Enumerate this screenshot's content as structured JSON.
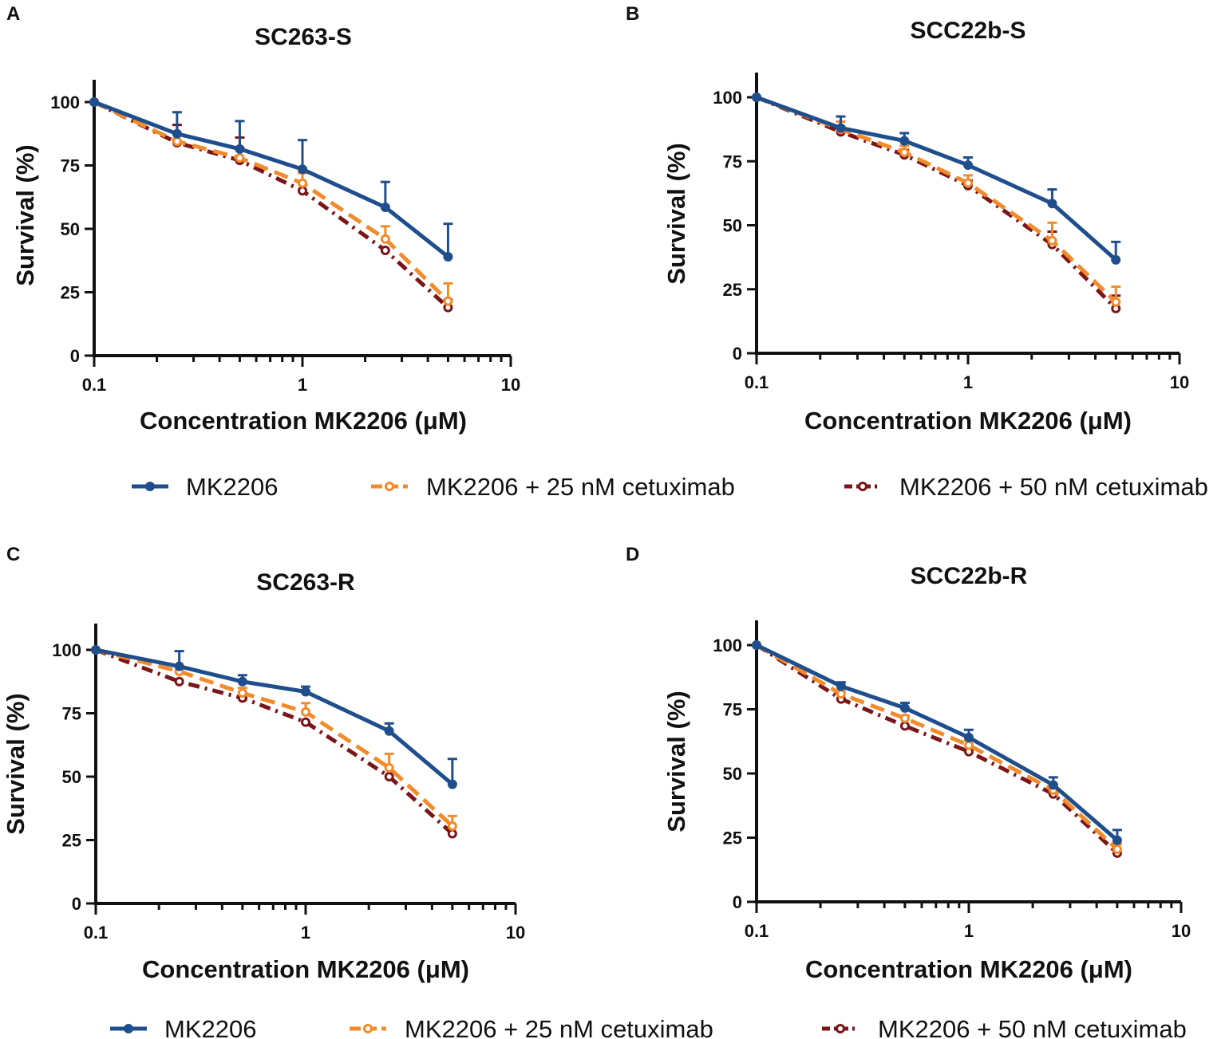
{
  "colors": {
    "MK2206": "#1f4e8c",
    "MK2206 + 25 nM cetuximab": "#f28b2b",
    "MK2206 + 50 nM cetuximab": "#7a1518"
  },
  "legend": {
    "top": [
      "MK2206",
      "MK2206 + 25 nM cetuximab",
      "MK2206 + 50 nM cetuximab"
    ],
    "bottom": [
      "MK2206",
      "MK2206 + 25 nM cetuximab",
      "MK2206 + 50 nM cetuximab"
    ]
  },
  "chart_data": [
    {
      "panel": "A",
      "type": "line",
      "title": "SC263-S",
      "xlabel": "Concentration MK2206 (μM)",
      "ylabel": "Survival (%)",
      "xscale": "log",
      "xlim": [
        0.1,
        10
      ],
      "ylim": [
        0,
        110
      ],
      "xticks": [
        "0.1",
        "1",
        "10"
      ],
      "yticks": [
        "0",
        "25",
        "50",
        "75",
        "100"
      ],
      "x": [
        0.1,
        0.25,
        0.5,
        1,
        2.5,
        5
      ],
      "series": [
        {
          "name": "MK2206",
          "values": [
            100,
            87.5,
            81.5,
            73.5,
            58.5,
            39
          ],
          "err": [
            0,
            8.5,
            11,
            11.5,
            10,
            13
          ]
        },
        {
          "name": "MK2206 + 25 nM cetuximab",
          "values": [
            100,
            84.5,
            78,
            68,
            46,
            21.5
          ],
          "err": [
            0,
            3,
            4,
            4,
            5,
            7
          ]
        },
        {
          "name": "MK2206 + 50 nM cetuximab",
          "values": [
            100,
            84,
            77,
            65,
            41.5,
            19
          ],
          "err": [
            0,
            7,
            9,
            0,
            0,
            3
          ]
        }
      ]
    },
    {
      "panel": "B",
      "type": "line",
      "title": "SCC22b-S",
      "xlabel": "Concentration MK2206 (μM)",
      "ylabel": "Survival (%)",
      "xscale": "log",
      "xlim": [
        0.1,
        10
      ],
      "ylim": [
        0,
        110
      ],
      "xticks": [
        "0.1",
        "1",
        "10"
      ],
      "yticks": [
        "0",
        "25",
        "50",
        "75",
        "100"
      ],
      "x": [
        0.1,
        0.25,
        0.5,
        1,
        2.5,
        5
      ],
      "series": [
        {
          "name": "MK2206",
          "values": [
            100,
            88,
            83,
            73.5,
            58.5,
            36.5
          ],
          "err": [
            0,
            4.5,
            3,
            3,
            5.5,
            7
          ]
        },
        {
          "name": "MK2206 + 25 nM cetuximab",
          "values": [
            100,
            87.5,
            78.5,
            66.5,
            44,
            20
          ],
          "err": [
            0,
            3,
            2.5,
            3,
            7,
            6
          ]
        },
        {
          "name": "MK2206 + 50 nM cetuximab",
          "values": [
            100,
            86.5,
            77.5,
            65.5,
            42.5,
            17.5
          ],
          "err": [
            0,
            2,
            2,
            2,
            5,
            5
          ]
        }
      ]
    },
    {
      "panel": "C",
      "type": "line",
      "title": "SC263-R",
      "xlabel": "Concentration MK2206 (μM)",
      "ylabel": "Survival (%)",
      "xscale": "log",
      "xlim": [
        0.1,
        10
      ],
      "ylim": [
        0,
        110
      ],
      "xticks": [
        "0.1",
        "1",
        "10"
      ],
      "yticks": [
        "0",
        "25",
        "50",
        "75",
        "100"
      ],
      "x": [
        0.1,
        0.25,
        0.5,
        1,
        2.5,
        5
      ],
      "series": [
        {
          "name": "MK2206",
          "values": [
            100,
            93.5,
            87.5,
            83.5,
            68,
            47
          ],
          "err": [
            0,
            6,
            2.5,
            2,
            3,
            10
          ]
        },
        {
          "name": "MK2206 + 25 nM cetuximab",
          "values": [
            100,
            91.5,
            83,
            75.5,
            53.5,
            30.5
          ],
          "err": [
            0,
            2,
            2,
            3.5,
            5.5,
            4
          ]
        },
        {
          "name": "MK2206 + 50 nM cetuximab",
          "values": [
            100,
            87.5,
            81,
            71.5,
            50,
            27.5
          ],
          "err": [
            0,
            0,
            0,
            0,
            0,
            0
          ]
        }
      ]
    },
    {
      "panel": "D",
      "type": "line",
      "title": "SCC22b-R",
      "xlabel": "Concentration MK2206 (μM)",
      "ylabel": "Survival (%)",
      "xscale": "log",
      "xlim": [
        0.1,
        10
      ],
      "ylim": [
        0,
        110
      ],
      "xticks": [
        "0.1",
        "1",
        "10"
      ],
      "yticks": [
        "0",
        "25",
        "50",
        "75",
        "100"
      ],
      "x": [
        0.1,
        0.25,
        0.5,
        1,
        2.5,
        5
      ],
      "series": [
        {
          "name": "MK2206",
          "values": [
            100,
            84,
            75.5,
            64,
            45.5,
            24
          ],
          "err": [
            0,
            1.5,
            2,
            3,
            3,
            4
          ]
        },
        {
          "name": "MK2206 + 25 nM cetuximab",
          "values": [
            100,
            81,
            71.5,
            61,
            43.5,
            20.5
          ],
          "err": [
            0,
            1,
            1,
            2,
            2,
            2
          ]
        },
        {
          "name": "MK2206 + 50 nM cetuximab",
          "values": [
            100,
            79,
            68.5,
            58.5,
            42,
            19
          ],
          "err": [
            0,
            0,
            0,
            0,
            0,
            0
          ]
        }
      ]
    }
  ]
}
